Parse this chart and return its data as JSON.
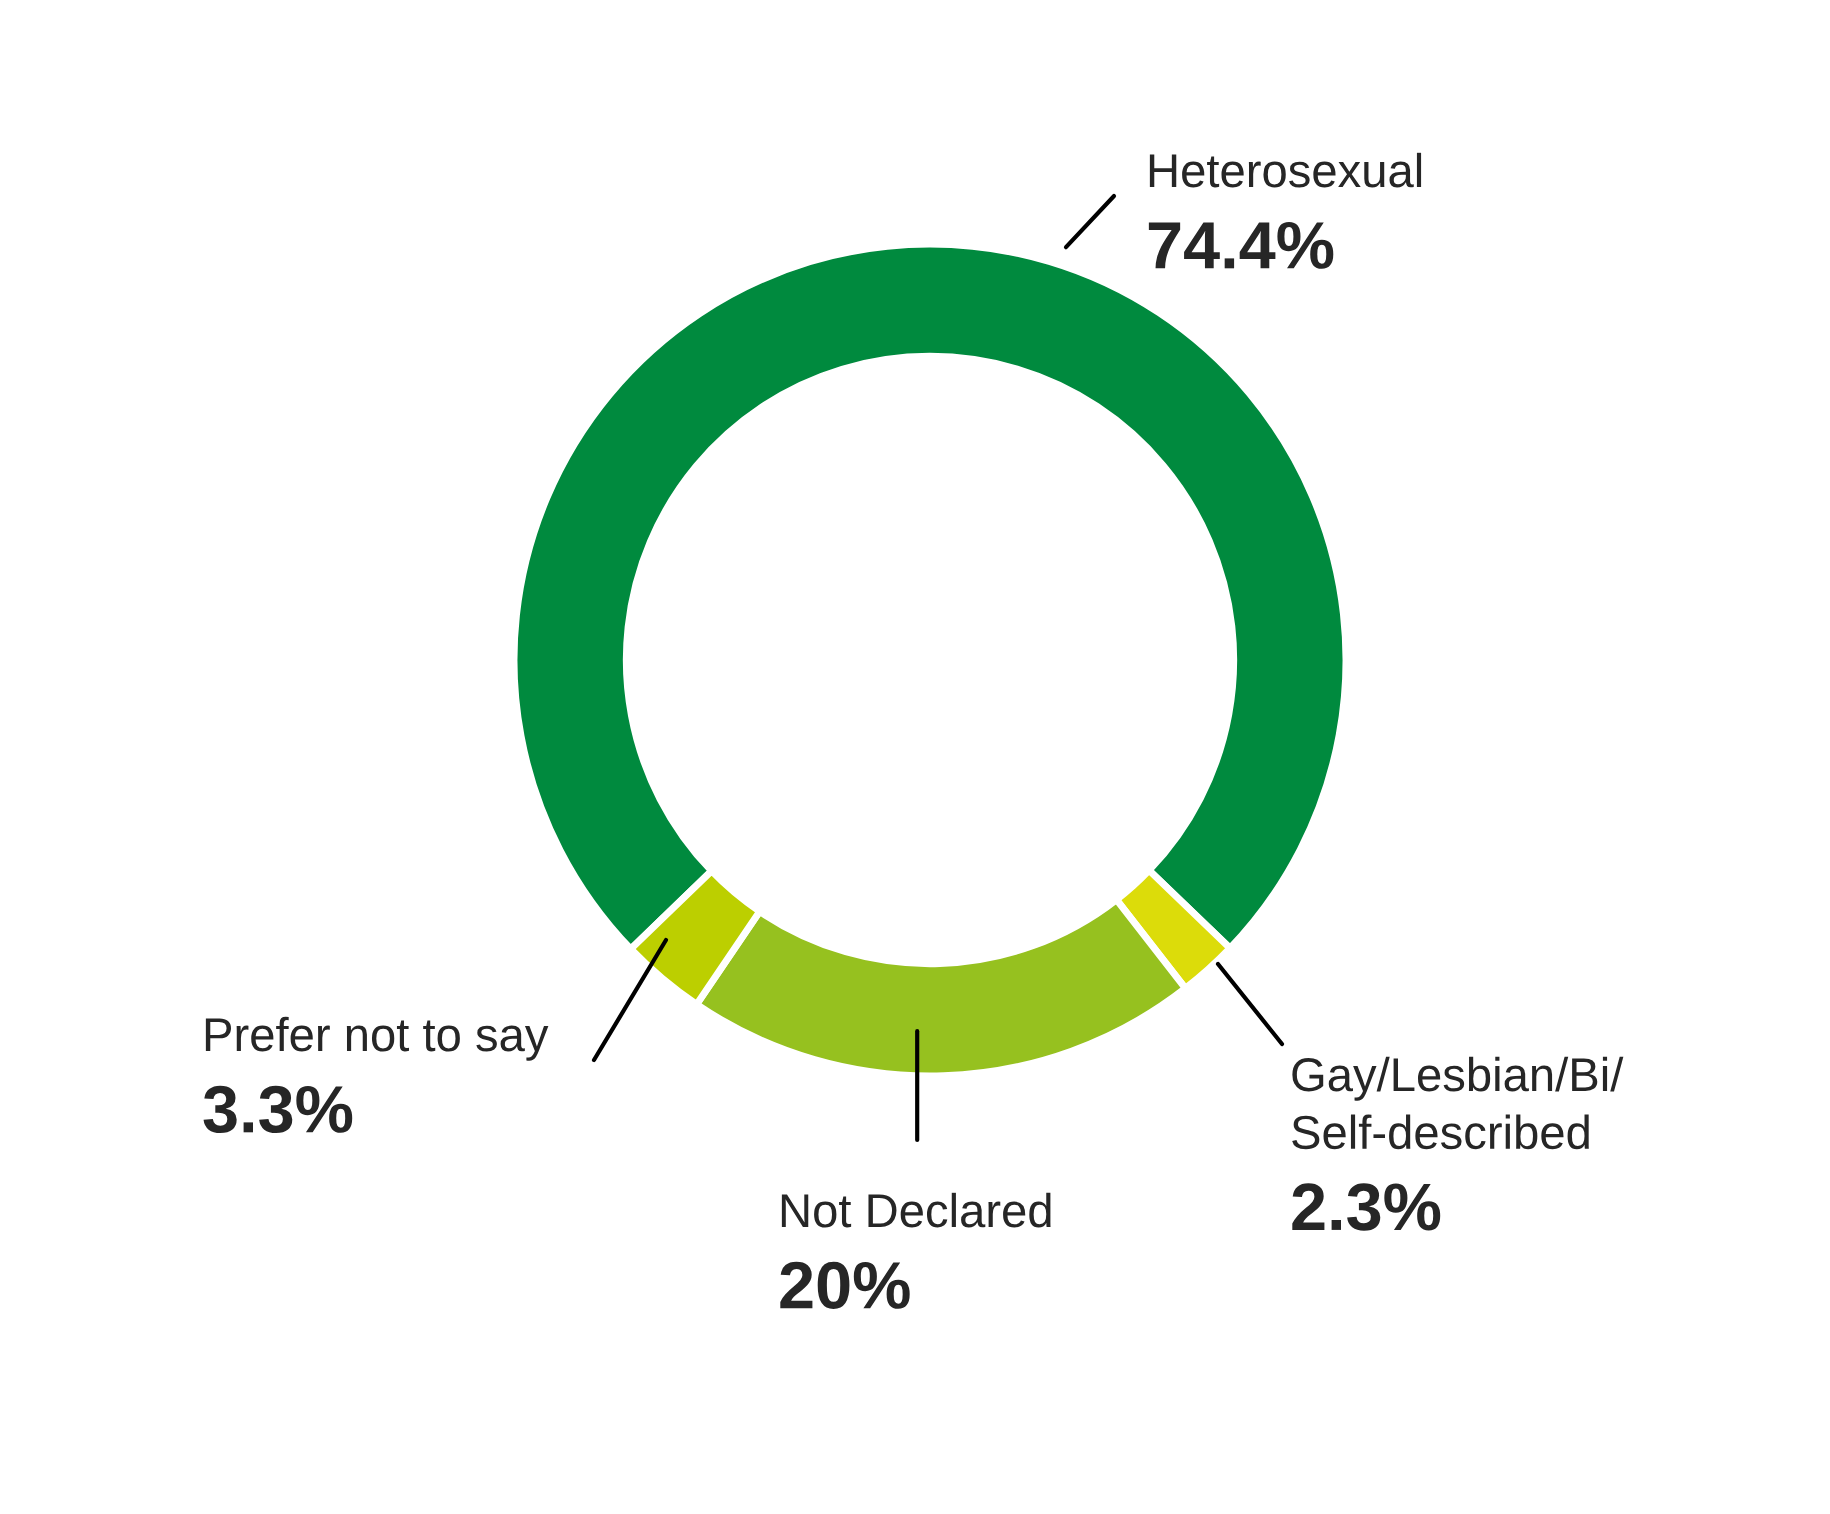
{
  "chart_data": {
    "type": "donut",
    "categories": [
      "Heterosexual",
      "Gay/Lesbian/Bi/\nSelf-described",
      "Not Declared",
      "Prefer not to say"
    ],
    "values": [
      74.4,
      2.3,
      20,
      3.3
    ],
    "colors": [
      "#008a3e",
      "#dcdc0a",
      "#96c11f",
      "#bccf00"
    ],
    "value_labels": [
      "74.4%",
      "2.3%",
      "20%",
      "3.3%"
    ],
    "legend": false
  }
}
